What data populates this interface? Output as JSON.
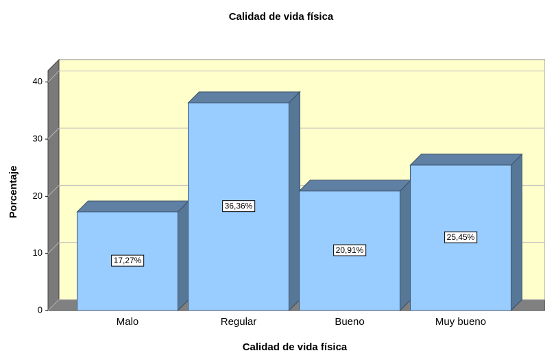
{
  "chart_data": {
    "type": "bar",
    "title": "Calidad de vida física",
    "x_label": "Calidad de vida física",
    "y_label": "Porcentaje",
    "categories": [
      "Malo",
      "Regular",
      "Bueno",
      "Muy bueno"
    ],
    "values": [
      17.27,
      36.36,
      20.91,
      25.45
    ],
    "value_labels": [
      "17,27%",
      "36,36%",
      "20,91%",
      "25,45%"
    ],
    "color": "#99ccff",
    "ylim": [
      0,
      42
    ],
    "yticks": [
      0,
      10,
      20,
      30,
      40
    ],
    "grid": true
  }
}
